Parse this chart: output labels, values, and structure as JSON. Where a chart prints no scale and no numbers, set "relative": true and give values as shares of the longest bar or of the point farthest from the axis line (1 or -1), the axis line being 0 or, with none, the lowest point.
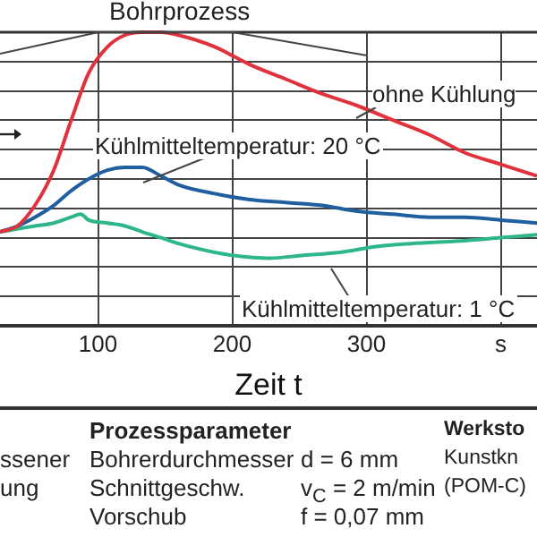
{
  "chart_data": {
    "type": "line",
    "relative": true,
    "xlabel": "Zeit t",
    "x": [
      27,
      40,
      53,
      67,
      80,
      93,
      107,
      120,
      133,
      147,
      160,
      187,
      213,
      240,
      267,
      293,
      320,
      347,
      373,
      400,
      427
    ],
    "xlim": [
      27,
      427
    ],
    "xticks": [
      100,
      200,
      300,
      {
        "value": 400,
        "label": "s"
      }
    ],
    "grid": true,
    "legend": false,
    "marker": "none",
    "line_style": "solid",
    "series": [
      {
        "name": "ohne Kühlung",
        "color": "#e0323c",
        "values": [
          0.32,
          0.34,
          0.41,
          0.53,
          0.7,
          0.86,
          0.95,
          0.99,
          1,
          1,
          0.99,
          0.95,
          0.89,
          0.84,
          0.79,
          0.75,
          0.7,
          0.65,
          0.59,
          0.55,
          0.51
        ]
      },
      {
        "name": "Kühlmitteltemperatur: 20 °C",
        "color": "#1f5fa0",
        "values": [
          0.32,
          0.34,
          0.37,
          0.41,
          0.46,
          0.5,
          0.53,
          0.54,
          0.54,
          0.51,
          0.48,
          0.45,
          0.43,
          0.42,
          0.41,
          0.39,
          0.38,
          0.37,
          0.37,
          0.36,
          0.35
        ]
      },
      {
        "name": "Kühlmitteltemperatur: 1 °C",
        "color": "#2db58c",
        "x": [
          27,
          40,
          53,
          67,
          80,
          87,
          93,
          107,
          120,
          133,
          147,
          160,
          187,
          200,
          227,
          253,
          280,
          307,
          333,
          373,
          400,
          427
        ],
        "values": [
          0.32,
          0.33,
          0.34,
          0.35,
          0.37,
          0.38,
          0.36,
          0.35,
          0.34,
          0.32,
          0.3,
          0.28,
          0.25,
          0.24,
          0.23,
          0.24,
          0.25,
          0.27,
          0.28,
          0.29,
          0.3,
          0.31
        ]
      }
    ],
    "annotations": [
      "Bohrprozess",
      "Prozessparameter",
      "Bohrerdurchmesser",
      "d  = 6 mm",
      "Schnittgeschw.",
      "v$_{C}$ = 2 m/min",
      "Vorschub",
      "f   = 0,07 mm",
      "Werksto",
      "Kunstkn",
      "(POM-C)",
      "ssener",
      "ung"
    ]
  }
}
